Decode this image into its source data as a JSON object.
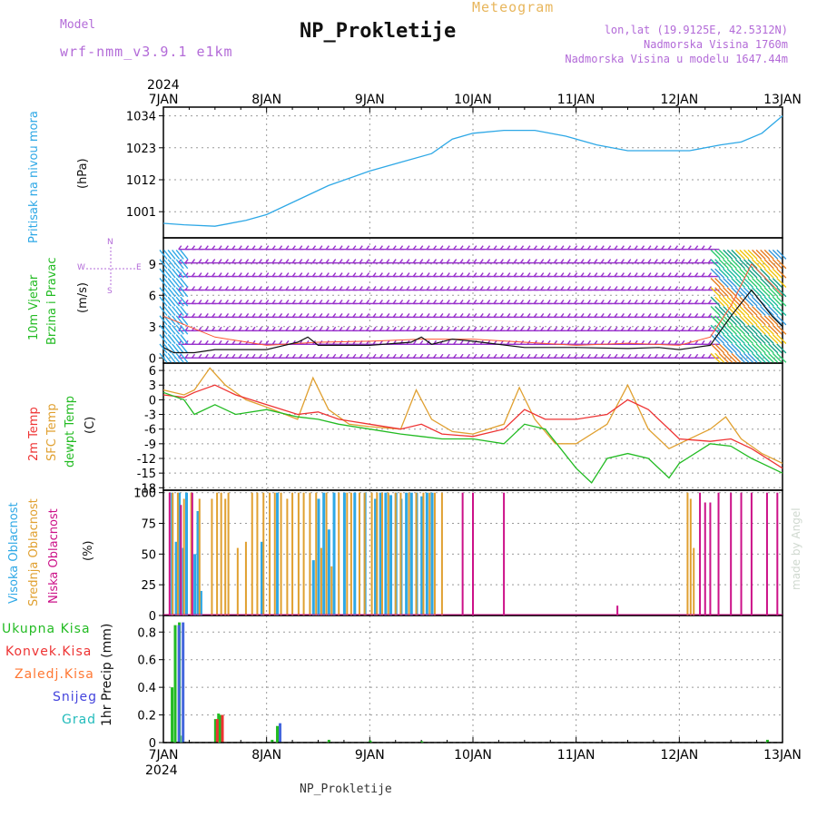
{
  "header": {
    "model_label": "Model",
    "model_name": "wrf-nmm_v3.9.1 e1km",
    "title": "NP_Prokletije",
    "subtitle": "Meteogram",
    "location": "lon,lat (19.9125E, 42.5312N)",
    "altitude": "Nadmorska Visina 1760m",
    "model_altitude": "Nadmorska Visina u modelu 1647.44m"
  },
  "footer": {
    "station": "NP_Prokletije",
    "credit": "made by Angel"
  },
  "axes": {
    "year": "2024",
    "x_ticks": [
      "7JAN",
      "8JAN",
      "9JAN",
      "10JAN",
      "11JAN",
      "12JAN",
      "13JAN"
    ]
  },
  "panel_labels": {
    "pressure": [
      "Pritisak na nivou mora",
      "(hPa)"
    ],
    "wind": [
      "10m Vjetar",
      "Brzina i Pravac",
      "(m/s)"
    ],
    "compass": [
      "N",
      "W",
      "E",
      "S"
    ],
    "temp": [
      "2m Temp",
      "SFC Temp",
      "dewpt Temp",
      "(C)"
    ],
    "cloud": [
      "Visoka Oblacnost",
      "Srednja Oblacnost",
      "Niska Oblacnost",
      "(%)"
    ],
    "precip_legend": [
      "Ukupna Kisa",
      "Konvek.Kisa",
      "Zaledj.Kisa",
      "Snijeg",
      "Grad"
    ],
    "precip_axis": "1hr Precip (mm)"
  },
  "colors": {
    "pressure": "#2ea8e6",
    "temp2m": "#ee3333",
    "sfc": "#e0a030",
    "dew": "#22bb22",
    "wind_line": "#111111",
    "wind_barb": "#9933cc",
    "gust": "#ff5533",
    "high_cloud": "#2ea8e6",
    "mid_cloud": "#e0a030",
    "low_cloud": "#cc1188",
    "grid": "#999999"
  },
  "chart_data": [
    {
      "type": "line",
      "panel": "pressure",
      "ylabel": "(hPa)",
      "yticks": [
        1001,
        1012,
        1023,
        1034
      ],
      "ylim": [
        992,
        1037
      ],
      "x_range_days": [
        7,
        13
      ],
      "series": [
        {
          "x": [
            7.0,
            7.2,
            7.5,
            7.8,
            8.0,
            8.3,
            8.6,
            9.0,
            9.3,
            9.6,
            9.8,
            10.0,
            10.3,
            10.6,
            10.9,
            11.2,
            11.5,
            11.8,
            12.1,
            12.4,
            12.6,
            12.8,
            13.0
          ],
          "y": [
            997,
            996.5,
            996,
            998,
            1000,
            1005,
            1010,
            1015,
            1018,
            1021,
            1026,
            1028,
            1029,
            1029,
            1027,
            1024,
            1022,
            1022,
            1022,
            1024,
            1025,
            1028,
            1034
          ]
        }
      ]
    },
    {
      "type": "line",
      "panel": "wind",
      "ylabel": "(m/s)",
      "yticks": [
        0,
        3,
        6,
        9
      ],
      "ylim": [
        -0.5,
        11.5
      ],
      "x_range_days": [
        7,
        13
      ],
      "series": [
        {
          "name": "wind speed",
          "x": [
            7.0,
            7.1,
            7.3,
            7.5,
            8.0,
            8.3,
            8.4,
            8.5,
            9.0,
            9.4,
            9.5,
            9.6,
            9.8,
            10.0,
            10.5,
            11.0,
            11.5,
            11.8,
            12.0,
            12.3,
            12.5,
            12.7,
            12.9,
            13.0
          ],
          "y": [
            1,
            0.5,
            0.5,
            0.8,
            0.8,
            1.5,
            2,
            1.2,
            1.2,
            1.5,
            2,
            1.3,
            1.8,
            1.6,
            1,
            1,
            0.9,
            1,
            0.8,
            1.2,
            4,
            6.5,
            4,
            3
          ]
        },
        {
          "name": "gust",
          "x": [
            7.0,
            7.5,
            8.0,
            8.5,
            9.0,
            9.5,
            10.0,
            10.5,
            11.0,
            11.5,
            12.0,
            12.3,
            12.5,
            12.7,
            13.0
          ],
          "y": [
            4,
            2,
            1.2,
            1.5,
            1.6,
            1.8,
            1.8,
            1.5,
            1.2,
            1.4,
            1.2,
            2,
            5,
            9,
            6
          ]
        }
      ]
    },
    {
      "type": "line",
      "panel": "temperature",
      "ylabel": "(C)",
      "yticks": [
        -18,
        -15,
        -12,
        -9,
        -6,
        -3,
        0,
        3,
        6
      ],
      "ylim": [
        -18.5,
        7.5
      ],
      "x_range_days": [
        7,
        13
      ],
      "series": [
        {
          "name": "2m Temp",
          "x": [
            7.0,
            7.2,
            7.3,
            7.5,
            7.7,
            8.0,
            8.3,
            8.5,
            8.7,
            9.0,
            9.3,
            9.5,
            9.7,
            10.0,
            10.3,
            10.5,
            10.7,
            11.0,
            11.3,
            11.5,
            11.7,
            12.0,
            12.3,
            12.5,
            12.7,
            13.0
          ],
          "y": [
            1,
            0.5,
            1.5,
            3,
            1,
            -1,
            -3,
            -2.5,
            -4,
            -5,
            -6,
            -5,
            -7,
            -7.5,
            -6,
            -2,
            -4,
            -4,
            -3,
            0,
            -2,
            -8,
            -8.5,
            -8,
            -10,
            -14
          ]
        },
        {
          "name": "SFC Temp",
          "x": [
            7.0,
            7.2,
            7.3,
            7.45,
            7.6,
            7.8,
            8.0,
            8.3,
            8.45,
            8.6,
            8.8,
            9.0,
            9.3,
            9.45,
            9.6,
            9.8,
            10.0,
            10.3,
            10.45,
            10.6,
            10.8,
            11.0,
            11.3,
            11.5,
            11.7,
            11.9,
            12.0,
            12.3,
            12.45,
            12.6,
            12.8,
            13.0
          ],
          "y": [
            2,
            1,
            2,
            6.5,
            3,
            0,
            -1.5,
            -4,
            4.5,
            -2,
            -5,
            -5.5,
            -6,
            2,
            -4,
            -6.5,
            -7,
            -5,
            2.5,
            -4,
            -9,
            -9,
            -5,
            3,
            -6,
            -10,
            -9,
            -6,
            -3.5,
            -8,
            -11,
            -13
          ]
        },
        {
          "name": "dewpt Temp",
          "x": [
            7.0,
            7.2,
            7.3,
            7.5,
            7.7,
            8.0,
            8.3,
            8.5,
            8.7,
            9.0,
            9.3,
            9.5,
            9.7,
            10.0,
            10.3,
            10.5,
            10.7,
            11.0,
            11.15,
            11.3,
            11.5,
            11.7,
            11.9,
            12.0,
            12.3,
            12.5,
            12.7,
            13.0
          ],
          "y": [
            1.5,
            0,
            -3,
            -1,
            -3,
            -2,
            -3.5,
            -4,
            -5,
            -6,
            -7,
            -7.5,
            -8,
            -8,
            -9,
            -5,
            -6,
            -14,
            -17,
            -12,
            -11,
            -12,
            -16,
            -13,
            -9,
            -9.5,
            -12,
            -15
          ]
        }
      ]
    },
    {
      "type": "bar",
      "panel": "cloud",
      "ylabel": "(%)",
      "yticks": [
        0,
        25,
        50,
        75,
        100
      ],
      "ylim": [
        0,
        102
      ],
      "x_range_days": [
        7,
        13
      ],
      "series": [
        {
          "name": "Visoka Oblacnost",
          "x": [
            7.08,
            7.12,
            7.15,
            7.19,
            7.22,
            7.3,
            7.33,
            7.36,
            7.95,
            8.1,
            8.45,
            8.5,
            8.55,
            8.6,
            8.65,
            8.75,
            8.85,
            8.95,
            9.05,
            9.1,
            9.15,
            9.2,
            9.25,
            9.3,
            9.35,
            9.4,
            9.45,
            9.5,
            9.55,
            9.6
          ],
          "y": [
            100,
            60,
            100,
            55,
            100,
            50,
            85,
            20,
            60,
            100,
            45,
            95,
            100,
            70,
            100,
            100,
            100,
            100,
            95,
            100,
            100,
            98,
            100,
            95,
            100,
            100,
            100,
            97,
            100,
            100
          ]
        },
        {
          "name": "Srednja Oblacnost",
          "x": [
            7.09,
            7.14,
            7.2,
            7.27,
            7.35,
            7.47,
            7.52,
            7.56,
            7.6,
            7.63,
            7.72,
            7.8,
            7.86,
            7.91,
            7.97,
            8.03,
            8.08,
            8.14,
            8.2,
            8.25,
            8.31,
            8.36,
            8.42,
            8.48,
            8.53,
            8.58,
            8.63,
            8.7,
            8.78,
            8.82,
            8.9,
            8.95,
            9.02,
            9.07,
            9.12,
            9.18,
            9.25,
            9.3,
            9.38,
            9.45,
            9.52,
            9.58,
            9.63,
            9.7,
            12.08,
            12.11,
            12.14
          ],
          "y": [
            100,
            100,
            95,
            100,
            95,
            95,
            100,
            100,
            95,
            100,
            55,
            60,
            100,
            100,
            100,
            100,
            100,
            100,
            95,
            100,
            100,
            100,
            100,
            100,
            55,
            100,
            40,
            100,
            100,
            100,
            100,
            100,
            100,
            100,
            100,
            100,
            100,
            100,
            100,
            100,
            100,
            100,
            100,
            100,
            100,
            95,
            55
          ]
        },
        {
          "name": "Niska Oblacnost",
          "x": [
            7.06,
            7.17,
            7.28,
            9.9,
            10.0,
            10.3,
            11.4,
            12.2,
            12.25,
            12.3,
            12.38,
            12.5,
            12.6,
            12.7,
            12.85,
            12.95
          ],
          "y": [
            100,
            90,
            100,
            100,
            100,
            100,
            8,
            100,
            92,
            92,
            100,
            100,
            100,
            100,
            100,
            100
          ]
        }
      ]
    },
    {
      "type": "bar",
      "panel": "precipitation",
      "ylabel": "1hr Precip (mm)",
      "yticks": [
        0,
        0.2,
        0.4,
        0.6,
        0.8
      ],
      "ylim": [
        0,
        0.92
      ],
      "x_range_days": [
        7,
        13
      ],
      "series": [
        {
          "name": "Ukupna Kisa",
          "x": [
            7.08,
            7.11,
            7.15,
            7.18,
            7.5,
            7.53,
            7.55,
            8.05,
            8.1,
            8.6,
            9.0,
            9.5,
            12.85
          ],
          "y": [
            0.4,
            0.85,
            0.87,
            0.05,
            0.17,
            0.21,
            0.2,
            0.02,
            0.12,
            0.02,
            0.015,
            0.01,
            0.02
          ]
        },
        {
          "name": "Konvek.Kisa",
          "x": [
            7.5,
            7.55
          ],
          "y": [
            0.17,
            0.2
          ]
        },
        {
          "name": "Snijeg",
          "x": [
            7.12,
            7.16,
            8.1
          ],
          "y": [
            0.85,
            0.87,
            0.14
          ]
        }
      ]
    }
  ]
}
